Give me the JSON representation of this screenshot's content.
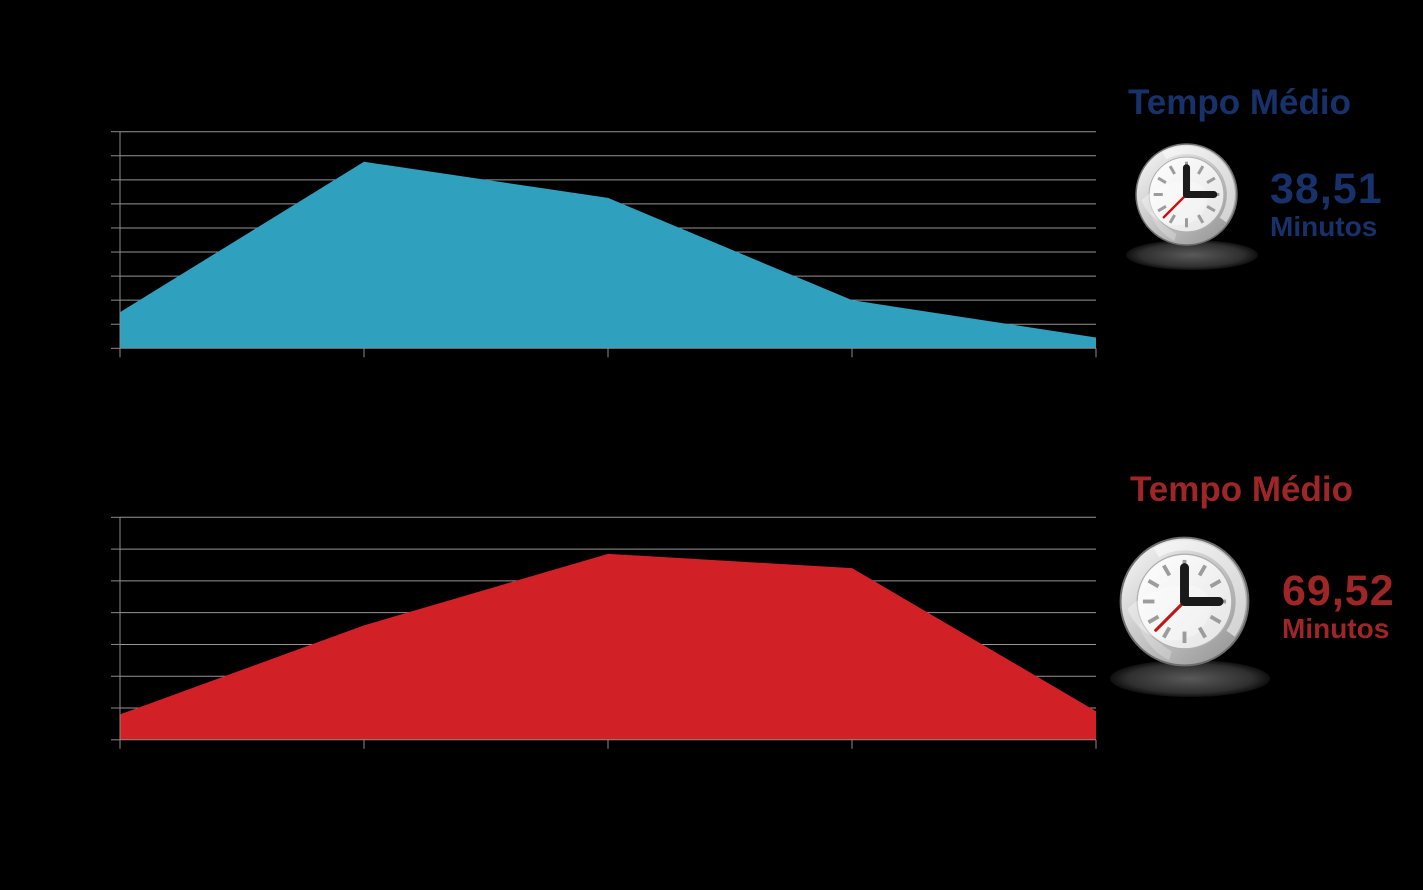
{
  "page": {
    "background_color": "#000000"
  },
  "chart_data": [
    {
      "type": "area",
      "title": "",
      "categories": [
        "",
        "",
        "",
        "",
        ""
      ],
      "series": [
        {
          "name": "blue-area-series",
          "values": [
            1.5,
            7.75,
            6.25,
            2.0,
            0.45
          ]
        }
      ],
      "values": [
        1.5,
        7.75,
        6.25,
        2.0,
        0.45
      ],
      "ylim": [
        0,
        9
      ],
      "gridline_step": 1,
      "grid_on": true,
      "x_tick_count": 5,
      "tick_labels_visible": false,
      "legend_position": "none",
      "color": "#2FA0BE",
      "grid_color": "#969696",
      "axis_color": "#8A8A8A"
    },
    {
      "type": "area",
      "title": "",
      "categories": [
        "",
        "",
        "",
        "",
        ""
      ],
      "series": [
        {
          "name": "red-area-series",
          "values": [
            0.8,
            3.6,
            5.85,
            5.4,
            0.9
          ]
        }
      ],
      "values": [
        0.8,
        3.6,
        5.85,
        5.4,
        0.9
      ],
      "ylim": [
        0,
        7
      ],
      "gridline_step": 1,
      "grid_on": true,
      "x_tick_count": 5,
      "tick_labels_visible": false,
      "legend_position": "none",
      "color": "#D22027",
      "grid_color": "#969696",
      "axis_color": "#8A8A8A"
    }
  ],
  "panels": [
    {
      "title": "Tempo Médio",
      "value": "38,51",
      "unit": "Minutos",
      "text_color": "#17316B",
      "icon": "clock-icon"
    },
    {
      "title": "Tempo Médio",
      "value": "69,52",
      "unit": "Minutos",
      "text_color": "#9E2626",
      "icon": "clock-icon"
    }
  ]
}
